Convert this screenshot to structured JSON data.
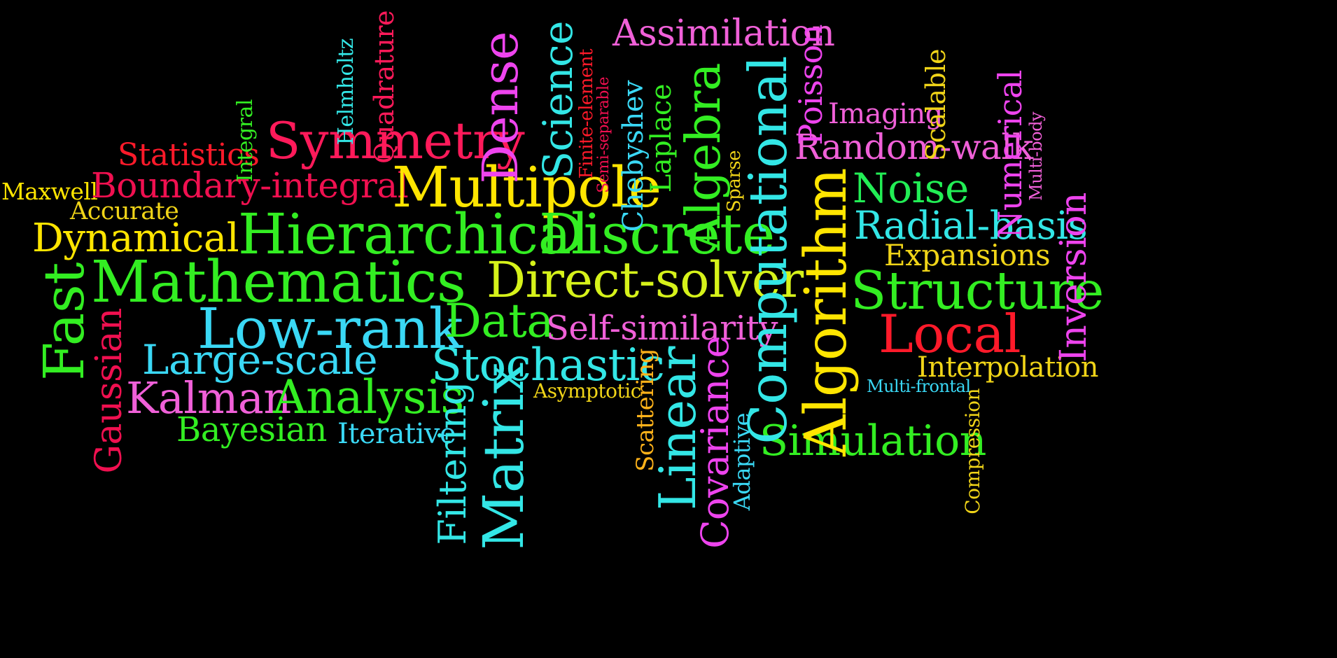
{
  "background_color": "#000000",
  "words": [
    "Maxwell",
    "Accurate",
    "Statistics",
    "Integral",
    "Helmholtz",
    "Quadrature",
    "Symmetry",
    "Boundary-integral",
    "Multipole",
    "Dense",
    "Science",
    "Finite-element",
    "Semi-separable",
    "Chebyshev",
    "Laplace",
    "Algebra",
    "Sparse",
    "Assimilation",
    "Computational",
    "Poisson",
    "Imaging",
    "Random-walk",
    "Scalable",
    "Numerical",
    "Multi-body",
    "Noise",
    "Radial-basis",
    "Expansions",
    "Inversion",
    "Structure",
    "Local",
    "Interpolation",
    "Multi-frontal",
    "Compression",
    "Algorithm",
    "Simulation",
    "Dynamical",
    "Hierarchical",
    "Discrete",
    "Fast",
    "Mathematics",
    "Direct-solver",
    "Gaussian",
    "Low-rank",
    "Data",
    "Self-similarity",
    "Large-scale",
    "Stochastic",
    "Kalman",
    "Analysis",
    "Asymptotic",
    "Bayesian",
    "Iterative",
    "Filtering",
    "Matrix",
    "Scattering",
    "Linear",
    "Covariance",
    "Adaptive"
  ]
}
